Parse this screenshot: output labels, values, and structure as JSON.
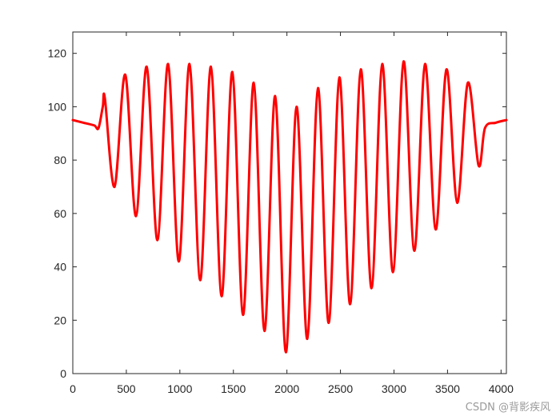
{
  "chart_data": {
    "type": "line",
    "title": "",
    "xlabel": "",
    "ylabel": "",
    "xlim": [
      0,
      4050
    ],
    "ylim": [
      0,
      128
    ],
    "x_ticks": [
      0,
      500,
      1000,
      1500,
      2000,
      2500,
      3000,
      3500,
      4000
    ],
    "y_ticks": [
      0,
      20,
      40,
      60,
      80,
      100,
      120
    ],
    "grid": false,
    "legend": "none",
    "series": [
      {
        "color": "#ff0000",
        "x": [
          0,
          100,
          200,
          240,
          280,
          300,
          390,
          490,
          590,
          690,
          790,
          890,
          990,
          1090,
          1190,
          1290,
          1390,
          1490,
          1590,
          1690,
          1790,
          1890,
          1990,
          2090,
          2190,
          2290,
          2390,
          2490,
          2590,
          2690,
          2790,
          2890,
          2990,
          3090,
          3190,
          3290,
          3390,
          3490,
          3590,
          3690,
          3790,
          3850,
          3950,
          4050
        ],
        "y": [
          95,
          94,
          93,
          92,
          100,
          103,
          70,
          112,
          59,
          115,
          50,
          116,
          42,
          116,
          35,
          115,
          29,
          113,
          22,
          109,
          16,
          104,
          8,
          100,
          13,
          107,
          19,
          111,
          26,
          114,
          32,
          116,
          38,
          117,
          46,
          116,
          54,
          114,
          64,
          109,
          78,
          92,
          94,
          95
        ]
      }
    ]
  },
  "watermark": "CSDN @背影疾风"
}
